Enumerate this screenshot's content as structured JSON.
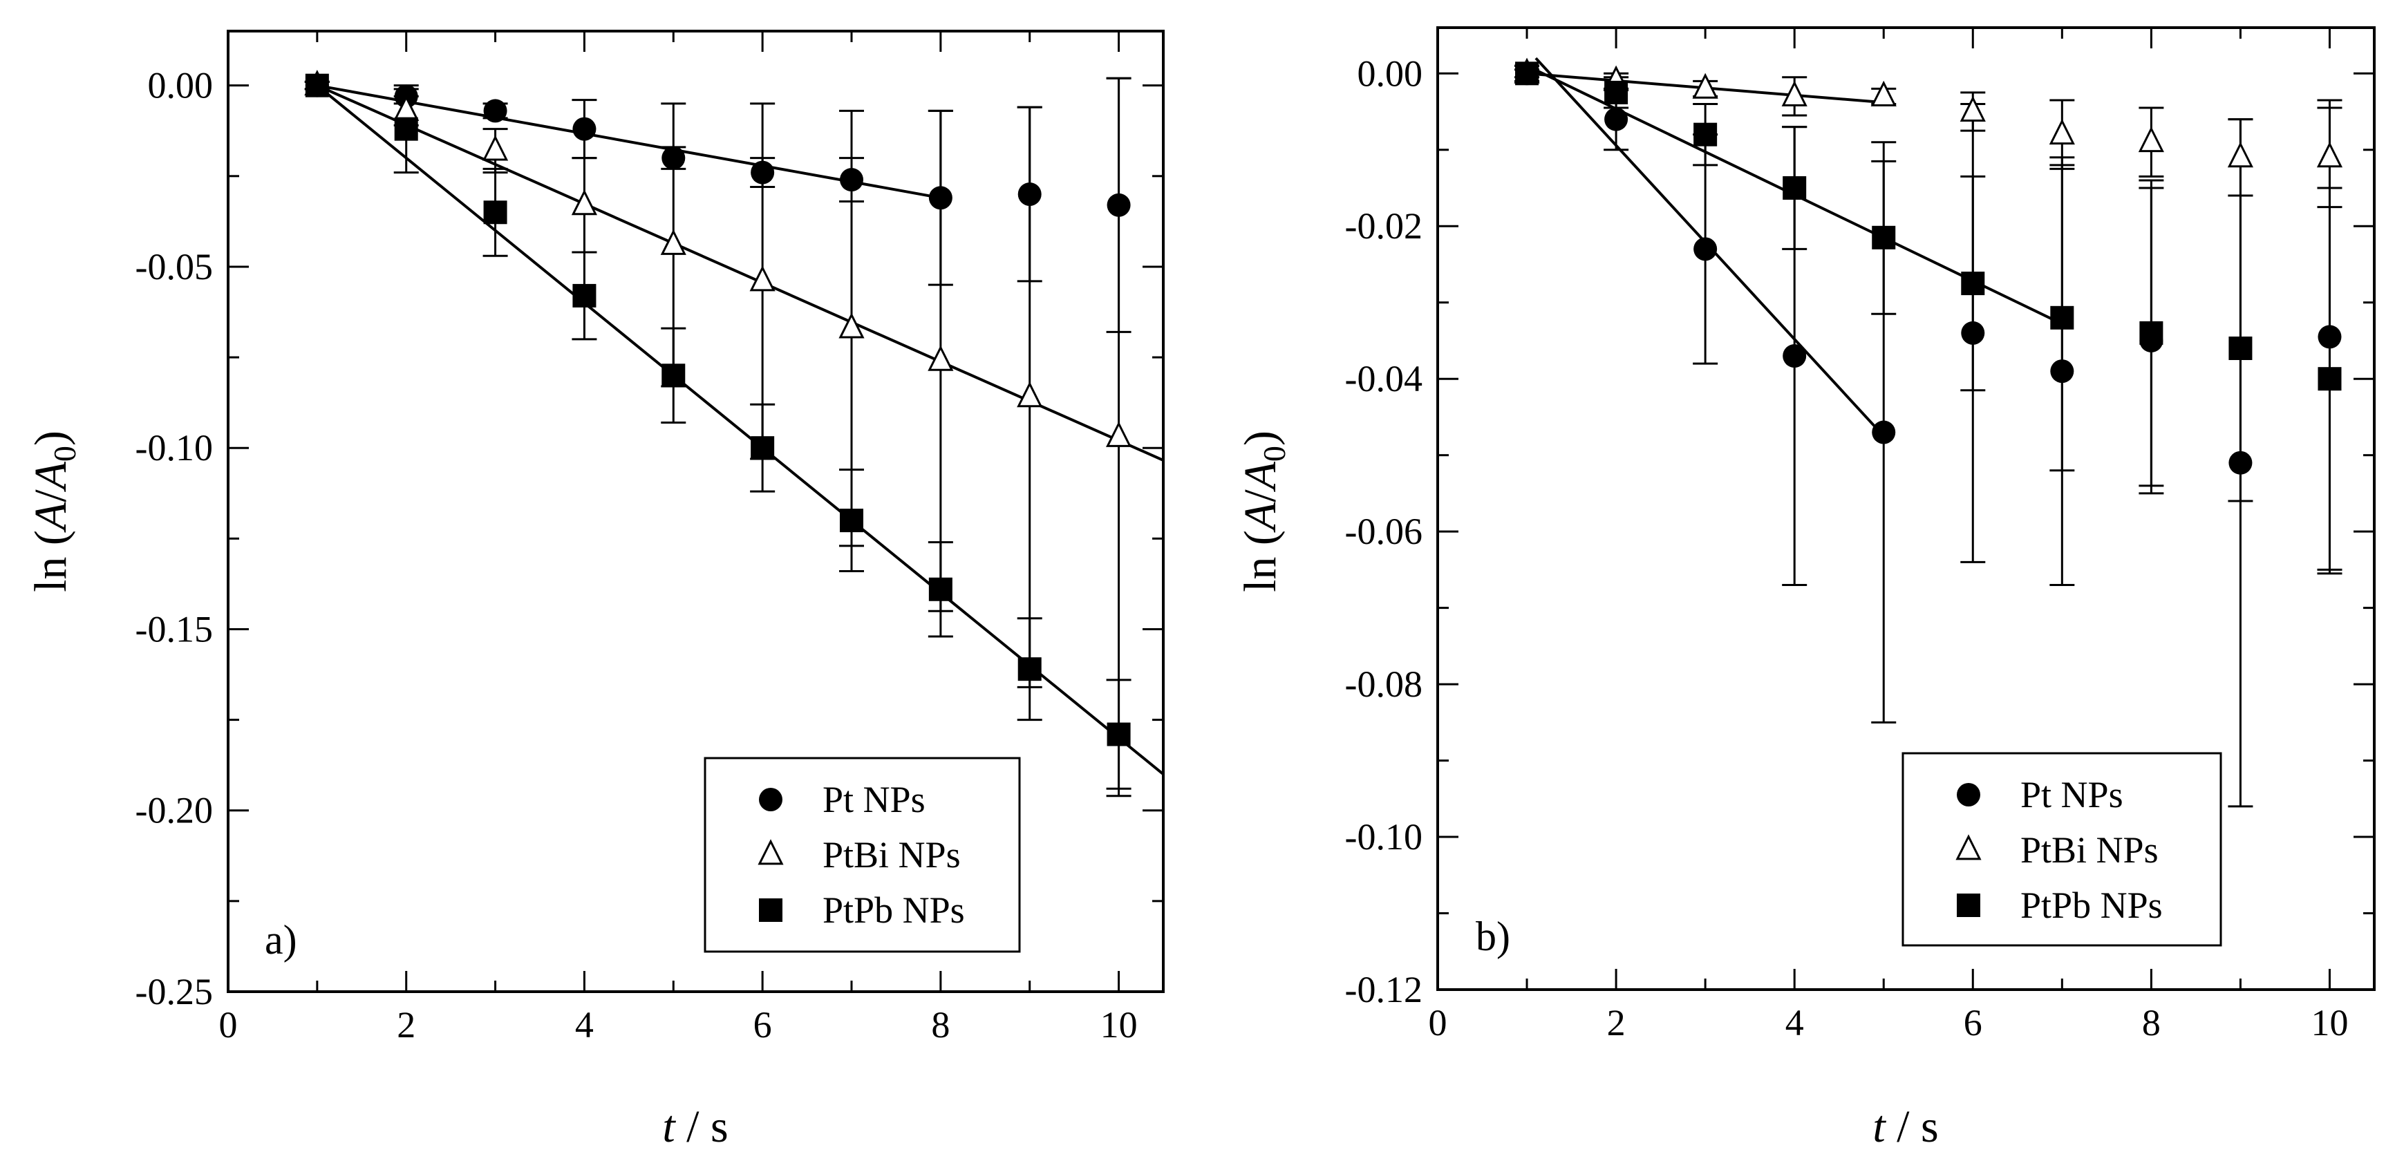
{
  "chart_data": [
    {
      "type": "scatter",
      "panel_label": "a)",
      "xlabel": {
        "italic": "t",
        "rest": " / s"
      },
      "ylabel": {
        "prefix": "ln (",
        "num": "A",
        "slash": "/",
        "den": "A",
        "sub": "0",
        "suffix": ")"
      },
      "xlim": [
        0,
        10.5
      ],
      "ylim": [
        -0.25,
        0.015
      ],
      "xticks": [
        0,
        2,
        4,
        6,
        8,
        10
      ],
      "xtick_labels": [
        "0",
        "2",
        "4",
        "6",
        "8",
        "10"
      ],
      "yticks": [
        0,
        -0.05,
        -0.1,
        -0.15,
        -0.2,
        -0.25
      ],
      "ytick_labels": [
        "0.00",
        "-0.05",
        "-0.10",
        "-0.15",
        "-0.20",
        "-0.25"
      ],
      "x_minor_step": 1,
      "y_minor_step": 0.025,
      "legend_position": "bottom-right",
      "series": [
        {
          "name": "Pt NPs",
          "marker": "circle-filled",
          "x": [
            1,
            2,
            3,
            4,
            5,
            6,
            7,
            8,
            9,
            10
          ],
          "y": [
            0,
            -0.003,
            -0.007,
            -0.012,
            -0.02,
            -0.024,
            -0.026,
            -0.031,
            -0.03,
            -0.033
          ],
          "err": [
            0.001,
            0.002,
            0.002,
            0.008,
            0.003,
            0.004,
            0.006,
            0.024,
            0.024,
            0.035
          ],
          "fit": {
            "x": [
              1,
              8
            ],
            "y": [
              0,
              -0.031
            ]
          }
        },
        {
          "name": "PtBi NPs",
          "marker": "triangle-open",
          "x": [
            1,
            2,
            3,
            4,
            5,
            6,
            7,
            8,
            9,
            10
          ],
          "y": [
            0,
            -0.007,
            -0.018,
            -0.033,
            -0.044,
            -0.054,
            -0.067,
            -0.076,
            -0.086,
            -0.097
          ],
          "err": [
            0.001,
            0.004,
            0.006,
            0.013,
            0.039,
            0.049,
            0.06,
            0.069,
            0.08,
            0.099
          ],
          "fit": {
            "x": [
              1,
              10.5
            ],
            "y": [
              0,
              -0.1034
            ]
          }
        },
        {
          "name": "PtPb NPs",
          "marker": "square-filled",
          "x": [
            1,
            2,
            3,
            4,
            5,
            6,
            7,
            8,
            9,
            10
          ],
          "y": [
            0,
            -0.012,
            -0.035,
            -0.058,
            -0.08,
            -0.1,
            -0.12,
            -0.139,
            -0.161,
            -0.179
          ],
          "err": [
            0.001,
            0.012,
            0.012,
            0.012,
            0.013,
            0.012,
            0.014,
            0.013,
            0.014,
            0.015
          ],
          "fit": {
            "x": [
              1,
              10.5
            ],
            "y": [
              0,
              -0.19
            ]
          }
        }
      ]
    },
    {
      "type": "scatter",
      "panel_label": "b)",
      "xlabel": {
        "italic": "t",
        "rest": " / s"
      },
      "ylabel": {
        "prefix": "ln (",
        "num": "A",
        "slash": "/",
        "den": "A",
        "sub": "0",
        "suffix": ")"
      },
      "xlim": [
        0,
        10.5
      ],
      "ylim": [
        -0.12,
        0.006
      ],
      "xticks": [
        0,
        2,
        4,
        6,
        8,
        10
      ],
      "xtick_labels": [
        "0",
        "2",
        "4",
        "6",
        "8",
        "10"
      ],
      "yticks": [
        0,
        -0.02,
        -0.04,
        -0.06,
        -0.08,
        -0.1,
        -0.12
      ],
      "ytick_labels": [
        "0.00",
        "-0.02",
        "-0.04",
        "-0.06",
        "-0.08",
        "-0.10",
        "-0.12"
      ],
      "x_minor_step": 1,
      "y_minor_step": 0.01,
      "legend_position": "bottom-right",
      "series": [
        {
          "name": "Pt NPs",
          "marker": "circle-filled",
          "x": [
            1,
            2,
            3,
            4,
            5,
            6,
            7,
            8,
            9,
            10
          ],
          "y": [
            0,
            -0.006,
            -0.023,
            -0.037,
            -0.047,
            -0.034,
            -0.039,
            -0.035,
            -0.051,
            -0.0345
          ],
          "err": [
            0.001,
            0.004,
            0.015,
            0.03,
            0.038,
            0.03,
            0.028,
            0.02,
            0.045,
            0.031
          ],
          "fit": {
            "x": [
              1.1,
              5
            ],
            "y": [
              0.002,
              -0.0475
            ]
          }
        },
        {
          "name": "PtBi NPs",
          "marker": "triangle-open",
          "x": [
            1,
            2,
            3,
            4,
            5,
            6,
            7,
            8,
            9,
            10
          ],
          "y": [
            0,
            -0.001,
            -0.002,
            -0.003,
            -0.003,
            -0.005,
            -0.008,
            -0.009,
            -0.011,
            -0.011
          ],
          "err": [
            0.0005,
            0.001,
            0.001,
            0.0025,
            0.001,
            0.0025,
            0.0045,
            0.0045,
            0.005,
            0.0065
          ],
          "fit": {
            "x": [
              1,
              5
            ],
            "y": [
              0,
              -0.0038
            ]
          }
        },
        {
          "name": "PtPb NPs",
          "marker": "square-filled",
          "x": [
            1,
            2,
            3,
            4,
            5,
            6,
            7,
            8,
            9,
            10
          ],
          "y": [
            0,
            -0.0025,
            -0.008,
            -0.015,
            -0.0215,
            -0.0275,
            -0.032,
            -0.034,
            -0.036,
            -0.04
          ],
          "err": [
            0.001,
            0.002,
            0.004,
            0.008,
            0.01,
            0.014,
            0.02,
            0.02,
            0.02,
            0.025
          ],
          "fit": {
            "x": [
              1,
              7
            ],
            "y": [
              0.001,
              -0.0328
            ]
          }
        }
      ]
    }
  ]
}
